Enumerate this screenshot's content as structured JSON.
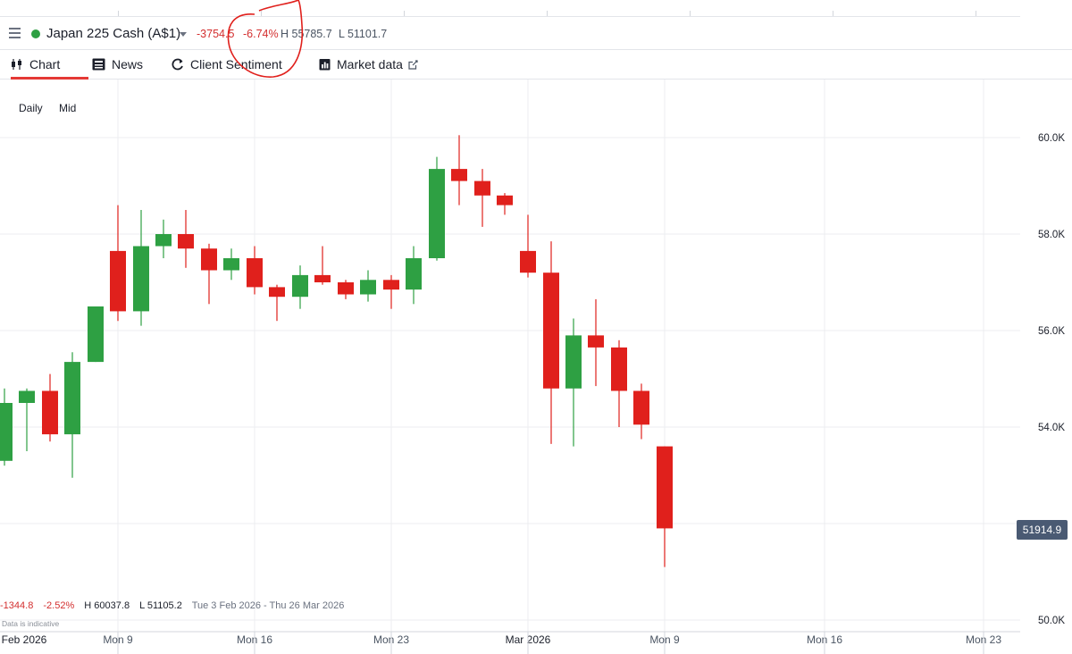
{
  "header": {
    "instrument": "Japan 225 Cash (A$1)",
    "change": "-3754.5",
    "change_pct": "-6.74%",
    "high": "H 55785.7",
    "low": "L 51101.7"
  },
  "tabs": [
    {
      "label": "Chart",
      "icon": "candlestick-icon"
    },
    {
      "label": "News",
      "icon": "newspaper-icon"
    },
    {
      "label": "Client Sentiment",
      "icon": "refresh-icon"
    },
    {
      "label": "Market data",
      "icon": "bar-chart-icon"
    }
  ],
  "chart_options": {
    "interval": "Daily",
    "price_type": "Mid"
  },
  "range_stats": {
    "change": "-1344.8",
    "change_pct": "-2.52%",
    "high": "H 60037.8",
    "low": "L 51105.2",
    "date_range": "Tue 3 Feb 2026 - Thu 26 Mar 2026"
  },
  "disclaimer": "Data is indicative",
  "current_price": "51914.9",
  "colors": {
    "up": "#2ea043",
    "down": "#e0201c",
    "accent": "#e53935",
    "price_label": "#4a5a73"
  },
  "chart_data": {
    "type": "candlestick",
    "y_ticks": [
      "60.0K",
      "58.0K",
      "56.0K",
      "54.0K",
      "50.0K"
    ],
    "x_ticks": [
      "Feb 2026",
      "Mon 9",
      "Mon 16",
      "Mon 23",
      "Mar 2026",
      "Mon 9",
      "Mon 16",
      "Mon 23"
    ],
    "ylim": [
      49700,
      61200
    ],
    "candles": [
      {
        "o": 53300,
        "h": 54800,
        "l": 53200,
        "c": 54500
      },
      {
        "o": 54500,
        "h": 54800,
        "l": 53500,
        "c": 54750
      },
      {
        "o": 54750,
        "h": 55100,
        "l": 53700,
        "c": 53850
      },
      {
        "o": 53850,
        "h": 55550,
        "l": 52950,
        "c": 55350
      },
      {
        "o": 55350,
        "h": 56500,
        "l": 55350,
        "c": 56500
      },
      {
        "o": 57650,
        "h": 58600,
        "l": 56200,
        "c": 56400
      },
      {
        "o": 56400,
        "h": 58500,
        "l": 56100,
        "c": 57750
      },
      {
        "o": 57750,
        "h": 58300,
        "l": 57500,
        "c": 58000
      },
      {
        "o": 58000,
        "h": 58500,
        "l": 57300,
        "c": 57700
      },
      {
        "o": 57700,
        "h": 57800,
        "l": 56550,
        "c": 57250
      },
      {
        "o": 57250,
        "h": 57700,
        "l": 57050,
        "c": 57500
      },
      {
        "o": 57500,
        "h": 57750,
        "l": 56750,
        "c": 56900
      },
      {
        "o": 56900,
        "h": 56950,
        "l": 56200,
        "c": 56700
      },
      {
        "o": 56700,
        "h": 57350,
        "l": 56450,
        "c": 57150
      },
      {
        "o": 57150,
        "h": 57750,
        "l": 56950,
        "c": 57000
      },
      {
        "o": 57000,
        "h": 57050,
        "l": 56650,
        "c": 56750
      },
      {
        "o": 56750,
        "h": 57250,
        "l": 56600,
        "c": 57050
      },
      {
        "o": 57050,
        "h": 57150,
        "l": 56450,
        "c": 56850
      },
      {
        "o": 56850,
        "h": 57750,
        "l": 56550,
        "c": 57500
      },
      {
        "o": 57500,
        "h": 59600,
        "l": 57450,
        "c": 59350
      },
      {
        "o": 59350,
        "h": 60050,
        "l": 58600,
        "c": 59100
      },
      {
        "o": 59100,
        "h": 59350,
        "l": 58150,
        "c": 58800
      },
      {
        "o": 58800,
        "h": 58850,
        "l": 58400,
        "c": 58600
      },
      {
        "o": 57650,
        "h": 58400,
        "l": 57100,
        "c": 57200
      },
      {
        "o": 57200,
        "h": 57850,
        "l": 53650,
        "c": 54800
      },
      {
        "o": 54800,
        "h": 56250,
        "l": 53600,
        "c": 55900
      },
      {
        "o": 55900,
        "h": 56650,
        "l": 54850,
        "c": 55650
      },
      {
        "o": 55650,
        "h": 55800,
        "l": 54000,
        "c": 54750
      },
      {
        "o": 54750,
        "h": 54900,
        "l": 53750,
        "c": 54050
      },
      {
        "o": 53600,
        "h": 53600,
        "l": 51100,
        "c": 51900
      }
    ]
  }
}
